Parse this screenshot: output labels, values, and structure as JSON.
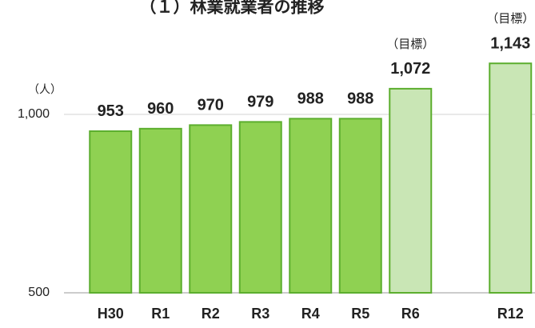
{
  "chart_data": {
    "type": "bar",
    "title": "（１）林業就業者の推移",
    "y_unit": "（人）",
    "categories": [
      "H30",
      "R1",
      "R2",
      "R3",
      "R4",
      "R5",
      "R6",
      null,
      "R12"
    ],
    "values": [
      953,
      960,
      970,
      979,
      988,
      988,
      1072,
      null,
      1143
    ],
    "value_labels": [
      "953",
      "960",
      "970",
      "979",
      "988",
      "988",
      "1,072",
      null,
      "1,143"
    ],
    "colors": [
      "#8fd152",
      "#8fd152",
      "#8fd152",
      "#8fd152",
      "#8fd152",
      "#8fd152",
      "#c9e6b5",
      null,
      "#c9e6b5"
    ],
    "border_color": "#5cae2e",
    "annotations": [
      {
        "text": "（目標）",
        "category": "R6"
      },
      {
        "text": "（目標）",
        "category": "R12"
      }
    ],
    "ylim": [
      500,
      1300
    ],
    "yticks": [
      500,
      {
        "value": 1000,
        "label": "1,000"
      }
    ],
    "grid": true
  }
}
